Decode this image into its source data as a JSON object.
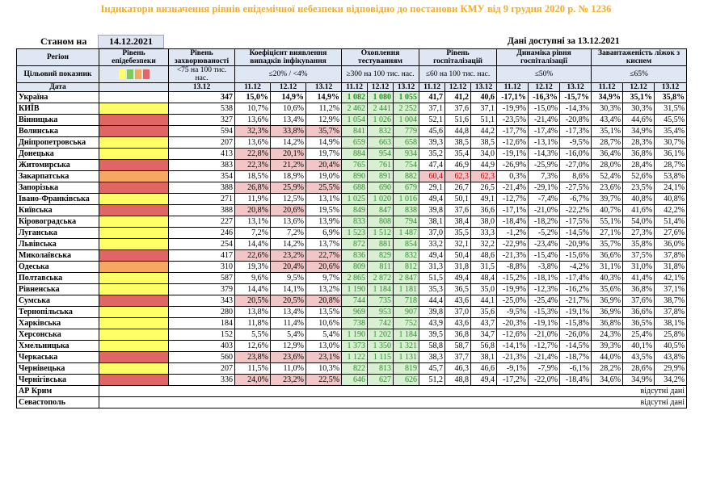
{
  "title": "Індикатори визначення рівнів епідемічної небезпеки відповідно до постанови КМУ від 9 грудня 2020 р. № 1236",
  "as_of_label": "Станом на",
  "as_of_date": "14.12.2021",
  "data_available": "Дані доступні за 13.12.2021",
  "headers": {
    "region": "Регіон",
    "level": "Рівень епідебезпеки",
    "morbidity": "Рівень захворюваності",
    "detection": "Коефіцієнт виявлення випадків інфікування",
    "testing": "Охоплення тестуванням",
    "hospitalization": "Рівень госпіталізацій",
    "dynamics": "Динаміка рівня госпіталізації",
    "occupancy": "Завантаженість ліжок з киснем",
    "target": "Цільовий показник",
    "date": "Дата",
    "morbidity_target": "<75 на 100 тис. нас.",
    "detection_target": "≤20% / <4%",
    "testing_target": "≥300 на 100 тис. нас.",
    "hosp_target": "≤60 на 100 тис. нас.",
    "dynamics_target": "≤50%",
    "occupancy_target": "≤65%",
    "date_single": "13.12",
    "dates3": [
      "11.12",
      "12.12",
      "13.12"
    ]
  },
  "colors": {
    "red": "#e06666",
    "yellow": "#ffff66",
    "orange": "#f5a860",
    "green": "#7ccc5e"
  },
  "rows": [
    {
      "region": "Україна",
      "level": "",
      "morb": "347",
      "det": [
        "15,0%",
        "14,9%",
        "14,9%"
      ],
      "test": [
        "1 082",
        "1 080",
        "1 055"
      ],
      "hosp": [
        "41,7",
        "41,2",
        "40,6"
      ],
      "dyn": [
        "-17,1%",
        "-16,3%",
        "-15,7%"
      ],
      "occ": [
        "34,9%",
        "35,1%",
        "35,8%"
      ]
    },
    {
      "region": "КИЇВ",
      "level": "yellow",
      "morb": "538",
      "det": [
        "10,7%",
        "10,6%",
        "11,2%"
      ],
      "test": [
        "2 462",
        "2 441",
        "2 252"
      ],
      "hosp": [
        "37,1",
        "37,6",
        "37,1"
      ],
      "dyn": [
        "-19,9%",
        "-15,0%",
        "-14,3%"
      ],
      "occ": [
        "30,3%",
        "30,3%",
        "31,5%"
      ]
    },
    {
      "region": "Вінницька",
      "level": "red",
      "morb": "327",
      "det": [
        "13,6%",
        "13,4%",
        "12,9%"
      ],
      "test": [
        "1 054",
        "1 026",
        "1 004"
      ],
      "hosp": [
        "52,1",
        "51,6",
        "51,1"
      ],
      "dyn": [
        "-23,5%",
        "-21,4%",
        "-20,8%"
      ],
      "occ": [
        "43,4%",
        "44,6%",
        "45,5%"
      ]
    },
    {
      "region": "Волинська",
      "level": "red",
      "morb": "594",
      "det": [
        "32,3%",
        "33,8%",
        "35,7%"
      ],
      "test": [
        "841",
        "832",
        "779"
      ],
      "hosp": [
        "45,6",
        "44,8",
        "44,2"
      ],
      "dyn": [
        "-17,7%",
        "-17,4%",
        "-17,3%"
      ],
      "occ": [
        "35,1%",
        "34,9%",
        "35,4%"
      ]
    },
    {
      "region": "Дніпропетровська",
      "level": "yellow",
      "morb": "207",
      "det": [
        "13,6%",
        "14,2%",
        "14,9%"
      ],
      "test": [
        "659",
        "663",
        "658"
      ],
      "hosp": [
        "39,3",
        "38,5",
        "38,5"
      ],
      "dyn": [
        "-12,6%",
        "-13,1%",
        "-9,5%"
      ],
      "occ": [
        "28,7%",
        "28,3%",
        "30,7%"
      ]
    },
    {
      "region": "Донецька",
      "level": "yellow",
      "morb": "413",
      "det": [
        "22,8%",
        "20,1%",
        "19,7%"
      ],
      "test": [
        "884",
        "954",
        "934"
      ],
      "hosp": [
        "35,2",
        "35,4",
        "34,0"
      ],
      "dyn": [
        "-19,1%",
        "-14,3%",
        "-16,0%"
      ],
      "occ": [
        "36,4%",
        "36,8%",
        "36,1%"
      ]
    },
    {
      "region": "Житомирська",
      "level": "red",
      "morb": "383",
      "det": [
        "22,3%",
        "21,2%",
        "20,4%"
      ],
      "test": [
        "765",
        "761",
        "754"
      ],
      "hosp": [
        "47,4",
        "46,9",
        "44,9"
      ],
      "dyn": [
        "-26,9%",
        "-25,9%",
        "-27,0%"
      ],
      "occ": [
        "28,0%",
        "28,4%",
        "28,7%"
      ]
    },
    {
      "region": "Закарпатська",
      "level": "orange",
      "morb": "354",
      "det": [
        "18,5%",
        "18,9%",
        "19,0%"
      ],
      "test": [
        "890",
        "891",
        "882"
      ],
      "hosp": [
        "60,4",
        "62,3",
        "62,3"
      ],
      "dyn": [
        "0,3%",
        "7,3%",
        "8,6%"
      ],
      "occ": [
        "52,4%",
        "52,6%",
        "53,8%"
      ]
    },
    {
      "region": "Запорізька",
      "level": "red",
      "morb": "388",
      "det": [
        "26,8%",
        "25,9%",
        "25,5%"
      ],
      "test": [
        "688",
        "690",
        "679"
      ],
      "hosp": [
        "29,1",
        "26,7",
        "26,5"
      ],
      "dyn": [
        "-21,4%",
        "-29,1%",
        "-27,5%"
      ],
      "occ": [
        "23,6%",
        "23,5%",
        "24,1%"
      ]
    },
    {
      "region": "Івано-Франківська",
      "level": "yellow",
      "morb": "271",
      "det": [
        "11,9%",
        "12,5%",
        "13,1%"
      ],
      "test": [
        "1 025",
        "1 020",
        "1 016"
      ],
      "hosp": [
        "49,4",
        "50,1",
        "49,1"
      ],
      "dyn": [
        "-12,7%",
        "-7,4%",
        "-6,7%"
      ],
      "occ": [
        "39,7%",
        "40,8%",
        "40,8%"
      ]
    },
    {
      "region": "Київська",
      "level": "red",
      "morb": "388",
      "det": [
        "20,8%",
        "20,6%",
        "19,5%"
      ],
      "test": [
        "849",
        "847",
        "838"
      ],
      "hosp": [
        "39,8",
        "37,6",
        "36,6"
      ],
      "dyn": [
        "-17,1%",
        "-21,0%",
        "-22,2%"
      ],
      "occ": [
        "40,7%",
        "41,6%",
        "42,2%"
      ]
    },
    {
      "region": "Кіровоградська",
      "level": "yellow",
      "morb": "227",
      "det": [
        "13,1%",
        "13,6%",
        "13,9%"
      ],
      "test": [
        "833",
        "808",
        "794"
      ],
      "hosp": [
        "38,1",
        "38,4",
        "38,0"
      ],
      "dyn": [
        "-18,4%",
        "-18,2%",
        "-17,5%"
      ],
      "occ": [
        "55,1%",
        "54,0%",
        "51,4%"
      ]
    },
    {
      "region": "Луганська",
      "level": "yellow",
      "morb": "246",
      "det": [
        "7,2%",
        "7,2%",
        "6,9%"
      ],
      "test": [
        "1 523",
        "1 512",
        "1 487"
      ],
      "hosp": [
        "37,0",
        "35,5",
        "33,3"
      ],
      "dyn": [
        "-1,2%",
        "-5,2%",
        "-14,5%"
      ],
      "occ": [
        "27,1%",
        "27,3%",
        "27,6%"
      ]
    },
    {
      "region": "Львівська",
      "level": "yellow",
      "morb": "254",
      "det": [
        "14,4%",
        "14,2%",
        "13,7%"
      ],
      "test": [
        "872",
        "881",
        "854"
      ],
      "hosp": [
        "33,2",
        "32,1",
        "32,2"
      ],
      "dyn": [
        "-22,9%",
        "-23,4%",
        "-20,9%"
      ],
      "occ": [
        "35,7%",
        "35,8%",
        "36,0%"
      ]
    },
    {
      "region": "Миколаївська",
      "level": "red",
      "morb": "417",
      "det": [
        "22,6%",
        "23,2%",
        "22,7%"
      ],
      "test": [
        "836",
        "829",
        "832"
      ],
      "hosp": [
        "49,4",
        "50,4",
        "48,6"
      ],
      "dyn": [
        "-21,3%",
        "-15,4%",
        "-15,6%"
      ],
      "occ": [
        "36,6%",
        "37,5%",
        "37,8%"
      ]
    },
    {
      "region": "Одеська",
      "level": "orange",
      "morb": "310",
      "det": [
        "19,3%",
        "20,4%",
        "20,6%"
      ],
      "test": [
        "809",
        "811",
        "812"
      ],
      "hosp": [
        "31,3",
        "31,8",
        "31,5"
      ],
      "dyn": [
        "-8,8%",
        "-3,8%",
        "-4,2%"
      ],
      "occ": [
        "31,1%",
        "31,0%",
        "31,8%"
      ]
    },
    {
      "region": "Полтавська",
      "level": "yellow",
      "morb": "587",
      "det": [
        "9,6%",
        "9,5%",
        "9,7%"
      ],
      "test": [
        "2 865",
        "2 872",
        "2 847"
      ],
      "hosp": [
        "51,5",
        "49,4",
        "48,4"
      ],
      "dyn": [
        "-15,2%",
        "-18,1%",
        "-17,4%"
      ],
      "occ": [
        "40,3%",
        "41,4%",
        "42,1%"
      ]
    },
    {
      "region": "Рівненська",
      "level": "yellow",
      "morb": "379",
      "det": [
        "14,4%",
        "14,1%",
        "13,2%"
      ],
      "test": [
        "1 190",
        "1 184",
        "1 181"
      ],
      "hosp": [
        "35,3",
        "36,5",
        "35,0"
      ],
      "dyn": [
        "-19,9%",
        "-12,3%",
        "-16,2%"
      ],
      "occ": [
        "35,6%",
        "36,8%",
        "37,1%"
      ]
    },
    {
      "region": "Сумська",
      "level": "red",
      "morb": "343",
      "det": [
        "20,5%",
        "20,5%",
        "20,8%"
      ],
      "test": [
        "744",
        "735",
        "718"
      ],
      "hosp": [
        "44,4",
        "43,6",
        "44,1"
      ],
      "dyn": [
        "-25,0%",
        "-25,4%",
        "-21,7%"
      ],
      "occ": [
        "36,9%",
        "37,6%",
        "38,7%"
      ]
    },
    {
      "region": "Тернопільська",
      "level": "yellow",
      "morb": "280",
      "det": [
        "13,8%",
        "13,4%",
        "13,5%"
      ],
      "test": [
        "969",
        "953",
        "907"
      ],
      "hosp": [
        "39,8",
        "37,0",
        "35,6"
      ],
      "dyn": [
        "-9,5%",
        "-15,3%",
        "-19,1%"
      ],
      "occ": [
        "36,9%",
        "36,6%",
        "37,8%"
      ]
    },
    {
      "region": "Харківська",
      "level": "yellow",
      "morb": "184",
      "det": [
        "11,8%",
        "11,4%",
        "10,6%"
      ],
      "test": [
        "738",
        "742",
        "752"
      ],
      "hosp": [
        "43,9",
        "43,6",
        "43,7"
      ],
      "dyn": [
        "-20,3%",
        "-19,1%",
        "-15,8%"
      ],
      "occ": [
        "36,8%",
        "36,5%",
        "38,1%"
      ]
    },
    {
      "region": "Херсонська",
      "level": "yellow",
      "morb": "152",
      "det": [
        "5,5%",
        "5,4%",
        "5,4%"
      ],
      "test": [
        "1 190",
        "1 202",
        "1 184"
      ],
      "hosp": [
        "39,5",
        "36,8",
        "34,7"
      ],
      "dyn": [
        "-12,6%",
        "-21,0%",
        "-26,0%"
      ],
      "occ": [
        "24,3%",
        "25,4%",
        "25,8%"
      ]
    },
    {
      "region": "Хмельницька",
      "level": "yellow",
      "morb": "403",
      "det": [
        "12,6%",
        "12,9%",
        "13,0%"
      ],
      "test": [
        "1 373",
        "1 350",
        "1 321"
      ],
      "hosp": [
        "58,8",
        "58,7",
        "56,8"
      ],
      "dyn": [
        "-14,1%",
        "-12,7%",
        "-14,5%"
      ],
      "occ": [
        "39,3%",
        "40,1%",
        "40,5%"
      ]
    },
    {
      "region": "Черкаська",
      "level": "red",
      "morb": "560",
      "det": [
        "23,8%",
        "23,6%",
        "23,1%"
      ],
      "test": [
        "1 122",
        "1 115",
        "1 131"
      ],
      "hosp": [
        "38,3",
        "37,7",
        "38,1"
      ],
      "dyn": [
        "-21,3%",
        "-21,4%",
        "-18,7%"
      ],
      "occ": [
        "44,0%",
        "43,5%",
        "43,8%"
      ]
    },
    {
      "region": "Чернівецька",
      "level": "yellow",
      "morb": "207",
      "det": [
        "11,5%",
        "11,0%",
        "10,3%"
      ],
      "test": [
        "822",
        "813",
        "819"
      ],
      "hosp": [
        "45,7",
        "46,3",
        "46,6"
      ],
      "dyn": [
        "-9,1%",
        "-7,9%",
        "-6,1%"
      ],
      "occ": [
        "28,2%",
        "28,6%",
        "29,9%"
      ]
    },
    {
      "region": "Чернігівська",
      "level": "red",
      "morb": "336",
      "det": [
        "24,0%",
        "23,2%",
        "22,5%"
      ],
      "test": [
        "646",
        "627",
        "626"
      ],
      "hosp": [
        "51,2",
        "48,8",
        "49,4"
      ],
      "dyn": [
        "-17,2%",
        "-22,0%",
        "-18,4%"
      ],
      "occ": [
        "34,6%",
        "34,9%",
        "34,2%"
      ]
    }
  ],
  "missing": [
    {
      "region": "АР Крим",
      "text": "відсутні дані"
    },
    {
      "region": "Севастополь",
      "text": "відсутні дані"
    }
  ]
}
